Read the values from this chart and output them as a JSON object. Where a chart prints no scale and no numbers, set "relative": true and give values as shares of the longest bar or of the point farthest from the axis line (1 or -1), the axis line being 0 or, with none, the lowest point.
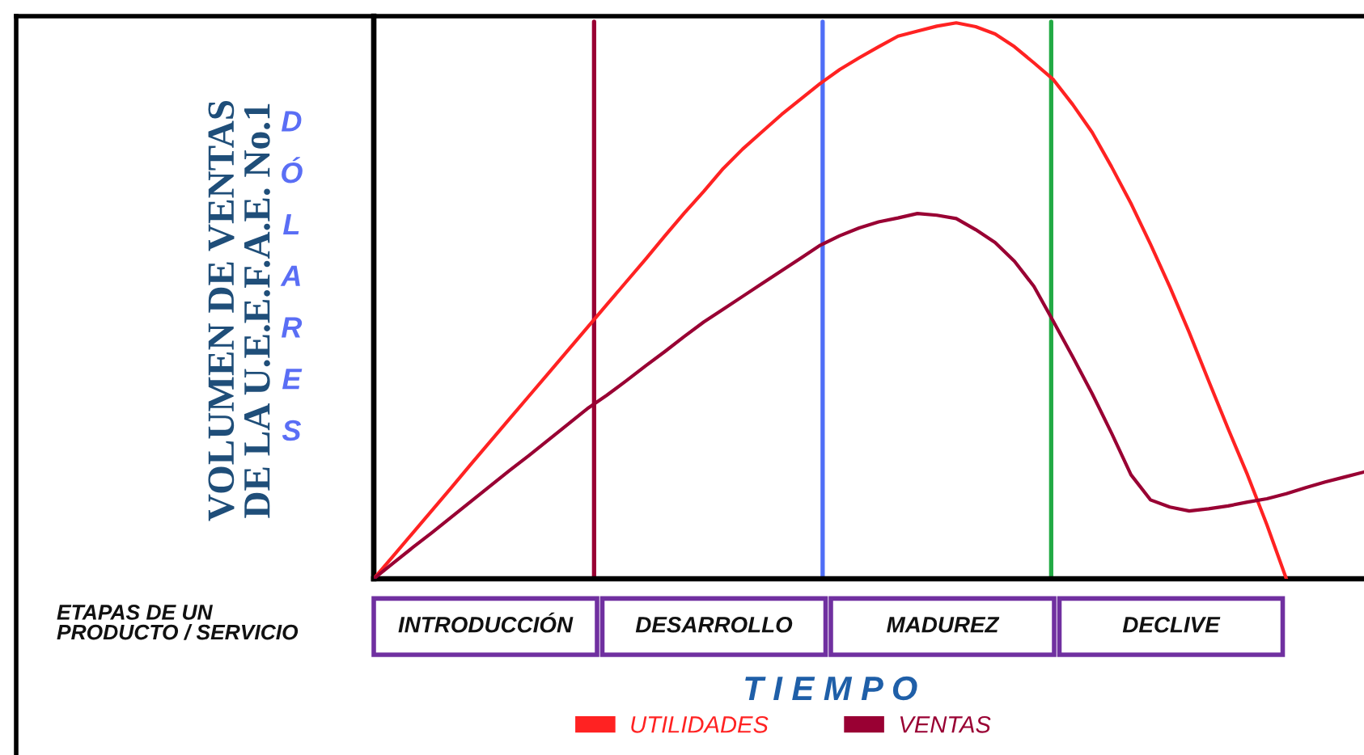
{
  "chart_data": {
    "type": "line",
    "relative": true,
    "ylabel": "VOLUMEN DE VENTAS\nDE LA U.E.E.F.A.E. No.1",
    "xlabel": "T I E M P O",
    "annotations": [
      "DÓLARES",
      "ETAPAS DE UN\nPRODUCTO / SERVICIO",
      "INTRODUCCIÓN",
      "DESARROLLO",
      "MADUREZ",
      "DECLIVE"
    ],
    "categories": [
      null,
      null,
      null,
      null,
      null,
      null,
      null,
      null,
      null,
      null,
      null,
      null,
      null,
      null,
      null,
      null,
      null,
      null,
      null,
      null,
      null,
      null,
      null,
      null,
      null,
      null,
      null,
      null,
      null,
      null,
      null,
      null,
      null,
      null,
      null,
      null,
      null,
      null,
      null,
      null,
      null,
      null,
      null,
      null,
      null,
      null,
      null,
      null,
      null,
      null,
      null,
      null
    ],
    "series": [
      {
        "name": "UTILIDADES",
        "color": "#ff2222",
        "values": [
          0,
          0.041,
          0.082,
          0.123,
          0.164,
          0.206,
          0.247,
          0.288,
          0.329,
          0.37,
          0.411,
          0.452,
          0.493,
          0.534,
          0.575,
          0.617,
          0.658,
          0.697,
          0.738,
          0.773,
          0.804,
          0.835,
          0.863,
          0.891,
          0.916,
          0.937,
          0.957,
          0.976,
          0.985,
          0.994,
          1.0,
          0.993,
          0.98,
          0.957,
          0.928,
          0.898,
          0.853,
          0.803,
          0.741,
          0.675,
          0.602,
          0.525,
          0.443,
          0.356,
          0.27,
          0.187,
          0.097,
          0,
          null,
          null,
          null,
          null
        ]
      },
      {
        "name": "VENTAS",
        "color": "#990033",
        "values": [
          0,
          0.028,
          0.056,
          0.083,
          0.111,
          0.139,
          0.167,
          0.195,
          0.222,
          0.25,
          0.278,
          0.306,
          0.33,
          0.356,
          0.383,
          0.409,
          0.436,
          0.462,
          0.485,
          0.508,
          0.531,
          0.554,
          0.577,
          0.6,
          0.617,
          0.631,
          0.642,
          0.649,
          0.657,
          0.654,
          0.648,
          0.628,
          0.605,
          0.571,
          0.526,
          0.463,
          0.399,
          0.333,
          0.262,
          0.187,
          0.142,
          0.129,
          0.122,
          0.126,
          0.131,
          0.138,
          0.144,
          0.153,
          0.164,
          0.174,
          0.183,
          0.192
        ]
      }
    ],
    "legend": "bottom"
  }
}
